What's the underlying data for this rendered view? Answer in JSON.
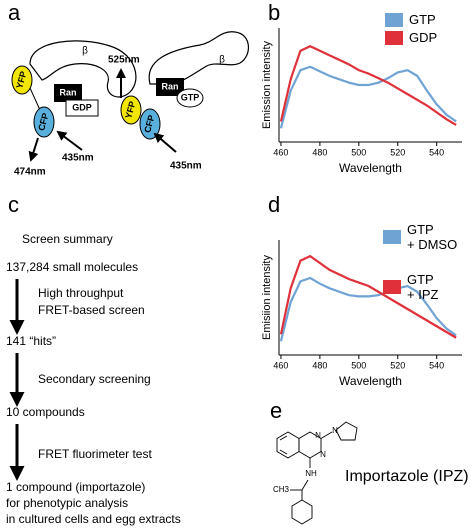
{
  "panel_labels": [
    "a",
    "c",
    "e"
  ],
  "diagram_a": {
    "left": {
      "acceptor": "YFP",
      "beta": "β",
      "ran": "Ran",
      "nucleotide": "GDP",
      "donor": "CFP",
      "emission": "474nm",
      "excitation": "435nm"
    },
    "right": {
      "emission": "525nm",
      "beta": "β",
      "acceptor": "YFP",
      "donor": "CFP",
      "ran": "Ran",
      "nucleotide": "GTP",
      "excitation": "435nm"
    }
  },
  "screen_summary": {
    "title": "Screen summary",
    "stages": [
      "137,284 small molecules",
      "141 “hits”",
      "10 compounds"
    ],
    "methods": [
      [
        "High throughput",
        "FRET-based screen"
      ],
      [
        "Secondary screening"
      ],
      [
        "FRET fluorimeter test"
      ]
    ],
    "result": [
      "1 compound (importazole)",
      "for phenotypic analysis",
      "in cultured cells and egg extracts"
    ]
  },
  "panel_e": {
    "name": "Importazole (IPZ)",
    "atoms": [
      "N",
      "N",
      "N",
      "NH",
      "CH3"
    ]
  },
  "chart_data": [
    {
      "type": "line",
      "panel_label": "b",
      "xlabel": "Wavelength",
      "ylabel": "Emission intensity",
      "x": [
        460,
        465,
        470,
        475,
        480,
        485,
        490,
        495,
        500,
        505,
        510,
        515,
        520,
        525,
        530,
        535,
        540,
        545,
        550
      ],
      "xlim": [
        459,
        553
      ],
      "xticks": [
        460,
        480,
        500,
        520,
        540
      ],
      "ylim": [
        0,
        100
      ],
      "series": [
        {
          "name": "GTP",
          "color": "#6fa3d4",
          "values": [
            12,
            45,
            63,
            66,
            62,
            58,
            55,
            52,
            50,
            50,
            52,
            56,
            61,
            63,
            58,
            45,
            33,
            24,
            18
          ]
        },
        {
          "name": "GDP",
          "color": "#e0303a",
          "values": [
            18,
            55,
            80,
            84,
            80,
            76,
            72,
            68,
            63,
            60,
            56,
            52,
            47,
            42,
            37,
            32,
            26,
            20,
            15
          ]
        }
      ]
    },
    {
      "type": "line",
      "panel_label": "d",
      "xlabel": "Wavelength",
      "ylabel": "Emisiion intensity",
      "x": [
        460,
        465,
        470,
        475,
        480,
        485,
        490,
        495,
        500,
        505,
        510,
        515,
        520,
        525,
        530,
        535,
        540,
        545,
        550
      ],
      "xlim": [
        459,
        553
      ],
      "xticks": [
        460,
        480,
        500,
        520,
        540
      ],
      "ylim": [
        0,
        100
      ],
      "series": [
        {
          "name": "GTP\n+ DMSO",
          "color": "#6fa3d4",
          "values": [
            12,
            46,
            64,
            67,
            62,
            58,
            55,
            52,
            51,
            51,
            52,
            55,
            58,
            60,
            55,
            44,
            32,
            23,
            17
          ]
        },
        {
          "name": "GTP\n+ IPZ",
          "color": "#e0303a",
          "values": [
            18,
            58,
            82,
            86,
            80,
            74,
            70,
            66,
            63,
            60,
            55,
            50,
            45,
            40,
            35,
            30,
            25,
            20,
            15
          ]
        }
      ]
    }
  ]
}
